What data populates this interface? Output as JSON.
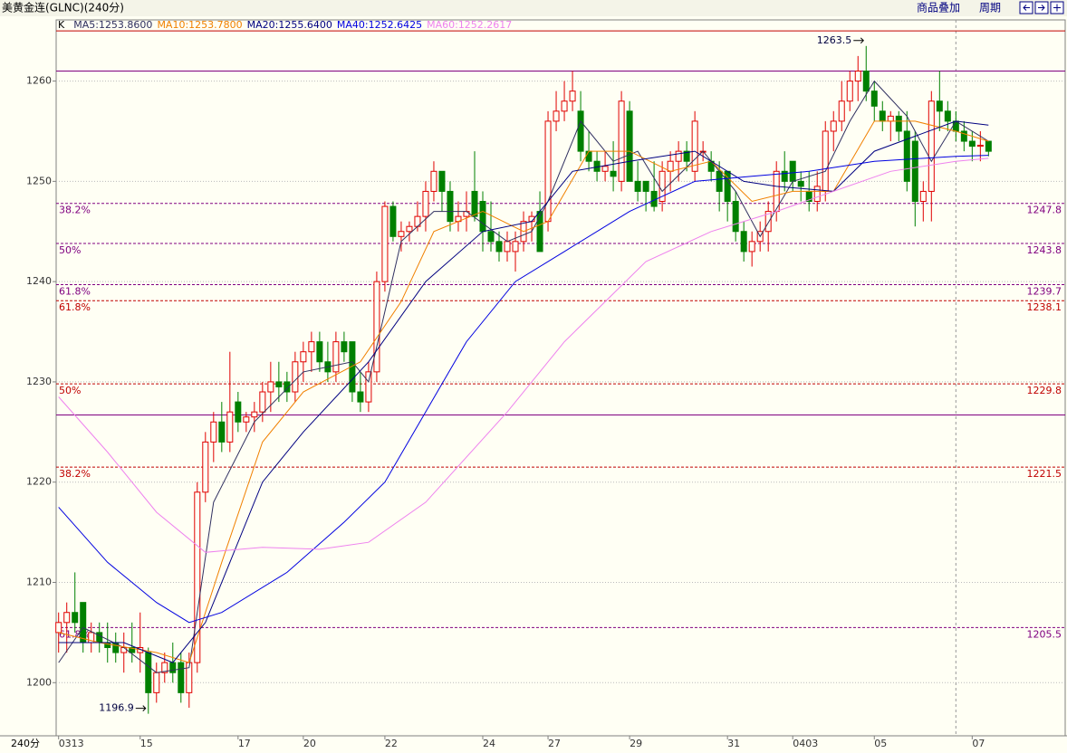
{
  "header": {
    "title": "美黄金连(GLNC)(240分)",
    "buttons": [
      "商品叠加",
      "周期"
    ]
  },
  "chart_data": {
    "type": "candlestick",
    "candle_label": "K",
    "x_unit": "240分",
    "up_color": "#e00000",
    "down_color": "#008000",
    "open": [
      1205,
      1206,
      1207,
      1208,
      1204,
      1205,
      1204,
      1204,
      1203,
      1203.5,
      1203,
      1203,
      1199,
      1201,
      1202,
      1202,
      1199,
      1202,
      1219,
      1224,
      1226,
      1224,
      1228,
      1226,
      1226.5,
      1227,
      1229,
      1230,
      1230,
      1229,
      1232,
      1233,
      1234,
      1232,
      1231,
      1234,
      1234,
      1229,
      1228,
      1231,
      1240,
      1247.5,
      1244.5,
      1245,
      1245.5,
      1246.5,
      1249,
      1251,
      1249,
      1246,
      1246.5,
      1249,
      1248,
      1245,
      1244,
      1243,
      1243,
      1244,
      1246,
      1247,
      1246,
      1256,
      1257,
      1258,
      1257,
      1253,
      1252,
      1251,
      1251,
      1250,
      1257,
      1250,
      1250,
      1249,
      1248,
      1251,
      1252,
      1253,
      1251,
      1253,
      1252,
      1251,
      1251,
      1248,
      1245,
      1243,
      1244,
      1245,
      1247,
      1251,
      1252,
      1250,
      1249,
      1248,
      1249,
      1255,
      1256,
      1258,
      1260,
      1261,
      1259,
      1257,
      1256,
      1256.5,
      1255,
      1254,
      1248,
      1249,
      1258,
      1257,
      1256,
      1255,
      1254,
      1253.5,
      1254
    ],
    "high": [
      1207,
      1208,
      1211,
      1208,
      1206,
      1206,
      1206,
      1205,
      1205,
      1206,
      1207,
      1203.5,
      1202,
      1203,
      1204,
      1203,
      1203,
      1220,
      1225,
      1227,
      1228,
      1233,
      1229,
      1227,
      1228,
      1230,
      1232,
      1232,
      1231,
      1233,
      1234,
      1235,
      1235,
      1234,
      1235,
      1235,
      1234,
      1231,
      1232,
      1241,
      1248,
      1248,
      1246,
      1246,
      1248,
      1250,
      1252,
      1251,
      1250,
      1248,
      1249,
      1253,
      1249,
      1248,
      1245,
      1245,
      1245,
      1247,
      1247,
      1249,
      1257,
      1259,
      1260,
      1261,
      1259,
      1255,
      1253,
      1253,
      1254,
      1259,
      1258,
      1252,
      1250,
      1252,
      1252,
      1253,
      1254,
      1254,
      1257,
      1254,
      1253,
      1252,
      1251,
      1249,
      1246,
      1245,
      1246,
      1248,
      1252,
      1253,
      1252,
      1251,
      1251,
      1251,
      1256,
      1257,
      1260,
      1261,
      1262.5,
      1263.5,
      1260,
      1258,
      1257,
      1257,
      1257,
      1255,
      1250,
      1259,
      1261,
      1258,
      1257,
      1256,
      1255,
      1255,
      1254
    ],
    "low": [
      1203,
      1203,
      1205,
      1203,
      1203,
      1203,
      1202,
      1202,
      1201,
      1202,
      1201,
      1196.9,
      1198,
      1200,
      1200,
      1198,
      1197.5,
      1201,
      1218,
      1222,
      1223,
      1223,
      1225,
      1225,
      1225,
      1226,
      1227,
      1228,
      1228,
      1228,
      1230,
      1231,
      1231,
      1230,
      1230,
      1232,
      1228,
      1227,
      1227,
      1230,
      1239,
      1244,
      1243,
      1244,
      1245,
      1245,
      1248,
      1247,
      1245,
      1245,
      1245,
      1246,
      1243,
      1243,
      1242,
      1242,
      1241,
      1243,
      1244,
      1243,
      1245,
      1255,
      1256,
      1257,
      1252,
      1251,
      1250,
      1250,
      1249,
      1249,
      1250,
      1248,
      1247,
      1247,
      1247,
      1249,
      1250,
      1251,
      1250,
      1252,
      1250,
      1247,
      1246,
      1244,
      1242,
      1241.5,
      1243,
      1243,
      1246,
      1249,
      1249,
      1248,
      1247,
      1247,
      1248,
      1253,
      1255,
      1257,
      1258,
      1258,
      1256,
      1255,
      1254,
      1254,
      1249,
      1245.5,
      1246,
      1246,
      1255,
      1255,
      1254,
      1253,
      1252,
      1252,
      1252.5
    ],
    "close": [
      1206,
      1207,
      1206,
      1204,
      1205,
      1204,
      1203.5,
      1203,
      1203.5,
      1203,
      1203.5,
      1199,
      1201,
      1202,
      1201,
      1199,
      1202,
      1219,
      1224,
      1226,
      1224,
      1227,
      1226,
      1226.5,
      1227,
      1229,
      1230,
      1229.5,
      1229,
      1232,
      1233,
      1234,
      1232,
      1231,
      1234,
      1233,
      1229,
      1228,
      1231,
      1240,
      1247.5,
      1244.5,
      1245,
      1245.5,
      1246.5,
      1249,
      1251,
      1249,
      1246,
      1246.5,
      1247,
      1246.5,
      1245,
      1244,
      1243,
      1244,
      1244,
      1246,
      1246.5,
      1243,
      1256,
      1257,
      1258,
      1259,
      1253,
      1252,
      1251,
      1251.5,
      1250.5,
      1258,
      1250,
      1249,
      1249,
      1247.5,
      1251,
      1252,
      1253,
      1252,
      1256,
      1253,
      1251,
      1249,
      1248,
      1245,
      1243,
      1244,
      1245,
      1247,
      1251,
      1250,
      1250,
      1249.5,
      1248,
      1249.5,
      1255,
      1256,
      1258,
      1260,
      1261,
      1259,
      1257.5,
      1256,
      1256.5,
      1255,
      1250,
      1248,
      1249,
      1258,
      1257,
      1256,
      1255,
      1254,
      1253.5,
      1253.6,
      1253
    ],
    "series": [
      {
        "name": "MA5:1253.8600",
        "color": "#303060",
        "x": [
          0,
          3,
          8,
          12,
          16,
          19,
          24,
          30,
          36,
          38,
          42,
          46,
          50,
          55,
          58,
          60,
          64,
          68,
          71,
          74,
          79,
          83,
          86,
          90,
          94,
          97,
          100,
          104,
          107,
          110,
          114
        ],
        "values": [
          1202,
          1205.5,
          1203.5,
          1201,
          1201.5,
          1218,
          1226,
          1231,
          1232,
          1230,
          1244,
          1247,
          1247,
          1244,
          1245,
          1248,
          1256,
          1252,
          1253,
          1249,
          1253,
          1249,
          1244.5,
          1250,
          1251,
          1256,
          1260,
          1256.5,
          1252,
          1256,
          1254
        ]
      },
      {
        "name": "MA10:1253.7800",
        "color": "#f08000",
        "x": [
          0,
          5,
          12,
          16,
          20,
          25,
          30,
          37,
          42,
          46,
          52,
          57,
          60,
          65,
          70,
          75,
          80,
          85,
          90,
          95,
          100,
          105,
          110,
          114
        ],
        "values": [
          1205,
          1204,
          1203,
          1202,
          1212,
          1224,
          1229,
          1232,
          1238,
          1245,
          1247,
          1245,
          1246,
          1253,
          1253,
          1251,
          1252,
          1248,
          1249,
          1249,
          1256,
          1256,
          1255,
          1254
        ]
      },
      {
        "name": "MA20:1255.6400",
        "color": "#000080",
        "x": [
          0,
          8,
          14,
          18,
          25,
          30,
          38,
          45,
          52,
          58,
          63,
          70,
          78,
          84,
          88,
          95,
          100,
          105,
          110,
          114
        ],
        "values": [
          1204,
          1204,
          1202,
          1206,
          1220,
          1225,
          1232,
          1240,
          1245,
          1246,
          1251,
          1252,
          1253,
          1250,
          1249.5,
          1249,
          1253,
          1254.5,
          1256,
          1255.6
        ]
      },
      {
        "name": "MA40:1252.6425",
        "color": "#0000e0",
        "x": [
          0,
          6,
          12,
          16,
          20,
          28,
          35,
          40,
          50,
          56,
          62,
          70,
          78,
          85,
          92,
          100,
          110,
          114
        ],
        "values": [
          1217.5,
          1212,
          1208,
          1206,
          1207,
          1211,
          1216,
          1220,
          1234,
          1240,
          1243,
          1247,
          1250,
          1250.5,
          1251,
          1252,
          1252.5,
          1252.6
        ]
      },
      {
        "name": "MA60:1252.2617",
        "color": "#ee82ee",
        "x": [
          0,
          6,
          12,
          18,
          25,
          32,
          38,
          45,
          55,
          62,
          72,
          80,
          88,
          95,
          102,
          110,
          114
        ],
        "values": [
          1228.5,
          1223,
          1217,
          1213,
          1213.5,
          1213.3,
          1214,
          1218,
          1227,
          1234,
          1242,
          1245,
          1247,
          1249,
          1251,
          1252,
          1252.3
        ]
      }
    ],
    "fib_levels": [
      {
        "label": "38.2%",
        "value": 1247.8,
        "color": "#800080"
      },
      {
        "label": "50%",
        "value": 1243.8,
        "color": "#800080"
      },
      {
        "label": "61.8%",
        "value": 1239.7,
        "color": "#800080"
      },
      {
        "label": "61.8%",
        "value": 1238.1,
        "color": "#c00000"
      },
      {
        "label": "50%",
        "value": 1229.8,
        "color": "#c00000"
      },
      {
        "label": "38.2%",
        "value": 1221.5,
        "color": "#c00000"
      },
      {
        "label": "61.8%",
        "value": 1205.5,
        "color": "#800080"
      }
    ],
    "hlines": [
      {
        "value": 1265,
        "color": "#c00000"
      },
      {
        "value": 1261,
        "color": "#800080"
      },
      {
        "value": 1226.7,
        "color": "#800080"
      }
    ],
    "annotations": [
      {
        "x": 99,
        "value": 1263.5
      },
      {
        "x": 11,
        "value": 1196.9
      }
    ],
    "cursor_x": 110,
    "xlim": [
      -0.3,
      123.4
    ],
    "ylim": [
      1194.7,
      1266.1
    ],
    "xticks": [
      {
        "value": 0,
        "label": "0313"
      },
      {
        "value": 10,
        "label": "15"
      },
      {
        "value": 22,
        "label": "17"
      },
      {
        "value": 30,
        "label": "20"
      },
      {
        "value": 40,
        "label": "22"
      },
      {
        "value": 52,
        "label": "24"
      },
      {
        "value": 60,
        "label": "27"
      },
      {
        "value": 70,
        "label": "29"
      },
      {
        "value": 82,
        "label": "31"
      },
      {
        "value": 90,
        "label": "0403"
      },
      {
        "value": 100,
        "label": "05"
      },
      {
        "value": 112,
        "label": "07"
      }
    ],
    "yticks": [
      1200,
      1210,
      1220,
      1230,
      1240,
      1250,
      1260
    ],
    "grid": true
  }
}
